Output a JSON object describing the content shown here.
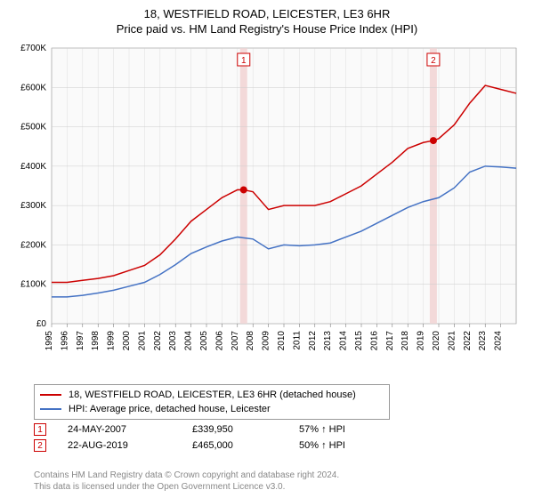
{
  "title": "18, WESTFIELD ROAD, LEICESTER, LE3 6HR",
  "subtitle": "Price paid vs. HM Land Registry's House Price Index (HPI)",
  "chart": {
    "type": "line",
    "background_color": "#ffffff",
    "plot_background_color": "#fafafa",
    "grid_color": "#cccccc",
    "axis_color": "#666666",
    "tick_fontsize": 10,
    "xlim": [
      1995,
      2025
    ],
    "ylim": [
      0,
      700000
    ],
    "ytick_step": 100000,
    "ytick_labels": [
      "£0",
      "£100K",
      "£200K",
      "£300K",
      "£400K",
      "£500K",
      "£600K",
      "£700K"
    ],
    "xtick_years": [
      1995,
      1996,
      1997,
      1998,
      1999,
      2000,
      2001,
      2002,
      2003,
      2004,
      2005,
      2006,
      2007,
      2008,
      2009,
      2010,
      2011,
      2012,
      2013,
      2014,
      2015,
      2016,
      2017,
      2018,
      2019,
      2020,
      2021,
      2022,
      2023,
      2024
    ],
    "markers_shade_color": "#f3d9d9",
    "series": [
      {
        "name": "18, WESTFIELD ROAD, LEICESTER, LE3 6HR (detached house)",
        "color": "#cc0000",
        "line_width": 1.5,
        "data": [
          [
            1995,
            105000
          ],
          [
            1996,
            105000
          ],
          [
            1997,
            110000
          ],
          [
            1998,
            115000
          ],
          [
            1999,
            122000
          ],
          [
            2000,
            135000
          ],
          [
            2001,
            148000
          ],
          [
            2002,
            175000
          ],
          [
            2003,
            215000
          ],
          [
            2004,
            260000
          ],
          [
            2005,
            290000
          ],
          [
            2006,
            320000
          ],
          [
            2007,
            340000
          ],
          [
            2007.4,
            339950
          ],
          [
            2008,
            335000
          ],
          [
            2009,
            290000
          ],
          [
            2010,
            300000
          ],
          [
            2011,
            300000
          ],
          [
            2012,
            300000
          ],
          [
            2013,
            310000
          ],
          [
            2014,
            330000
          ],
          [
            2015,
            350000
          ],
          [
            2016,
            380000
          ],
          [
            2017,
            410000
          ],
          [
            2018,
            445000
          ],
          [
            2019,
            460000
          ],
          [
            2019.65,
            465000
          ],
          [
            2020,
            470000
          ],
          [
            2021,
            505000
          ],
          [
            2022,
            560000
          ],
          [
            2023,
            605000
          ],
          [
            2024,
            595000
          ],
          [
            2025,
            585000
          ]
        ],
        "point_markers": [
          {
            "x": 2007.4,
            "y": 339950,
            "label": "1"
          },
          {
            "x": 2019.65,
            "y": 465000,
            "label": "2"
          }
        ]
      },
      {
        "name": "HPI: Average price, detached house, Leicester",
        "color": "#4472c4",
        "line_width": 1.5,
        "data": [
          [
            1995,
            68000
          ],
          [
            1996,
            68000
          ],
          [
            1997,
            72000
          ],
          [
            1998,
            78000
          ],
          [
            1999,
            85000
          ],
          [
            2000,
            95000
          ],
          [
            2001,
            105000
          ],
          [
            2002,
            125000
          ],
          [
            2003,
            150000
          ],
          [
            2004,
            178000
          ],
          [
            2005,
            195000
          ],
          [
            2006,
            210000
          ],
          [
            2007,
            220000
          ],
          [
            2008,
            215000
          ],
          [
            2009,
            190000
          ],
          [
            2010,
            200000
          ],
          [
            2011,
            198000
          ],
          [
            2012,
            200000
          ],
          [
            2013,
            205000
          ],
          [
            2014,
            220000
          ],
          [
            2015,
            235000
          ],
          [
            2016,
            255000
          ],
          [
            2017,
            275000
          ],
          [
            2018,
            295000
          ],
          [
            2019,
            310000
          ],
          [
            2020,
            320000
          ],
          [
            2021,
            345000
          ],
          [
            2022,
            385000
          ],
          [
            2023,
            400000
          ],
          [
            2024,
            398000
          ],
          [
            2025,
            395000
          ]
        ]
      }
    ]
  },
  "legend": {
    "items": [
      {
        "label": "18, WESTFIELD ROAD, LEICESTER, LE3 6HR (detached house)",
        "color": "#cc0000"
      },
      {
        "label": "HPI: Average price, detached house, Leicester",
        "color": "#4472c4"
      }
    ]
  },
  "marker_rows": [
    {
      "num": "1",
      "date": "24-MAY-2007",
      "price": "£339,950",
      "hpi": "57% ↑ HPI"
    },
    {
      "num": "2",
      "date": "22-AUG-2019",
      "price": "£465,000",
      "hpi": "50% ↑ HPI"
    }
  ],
  "footer_line1": "Contains HM Land Registry data © Crown copyright and database right 2024.",
  "footer_line2": "This data is licensed under the Open Government Licence v3.0."
}
